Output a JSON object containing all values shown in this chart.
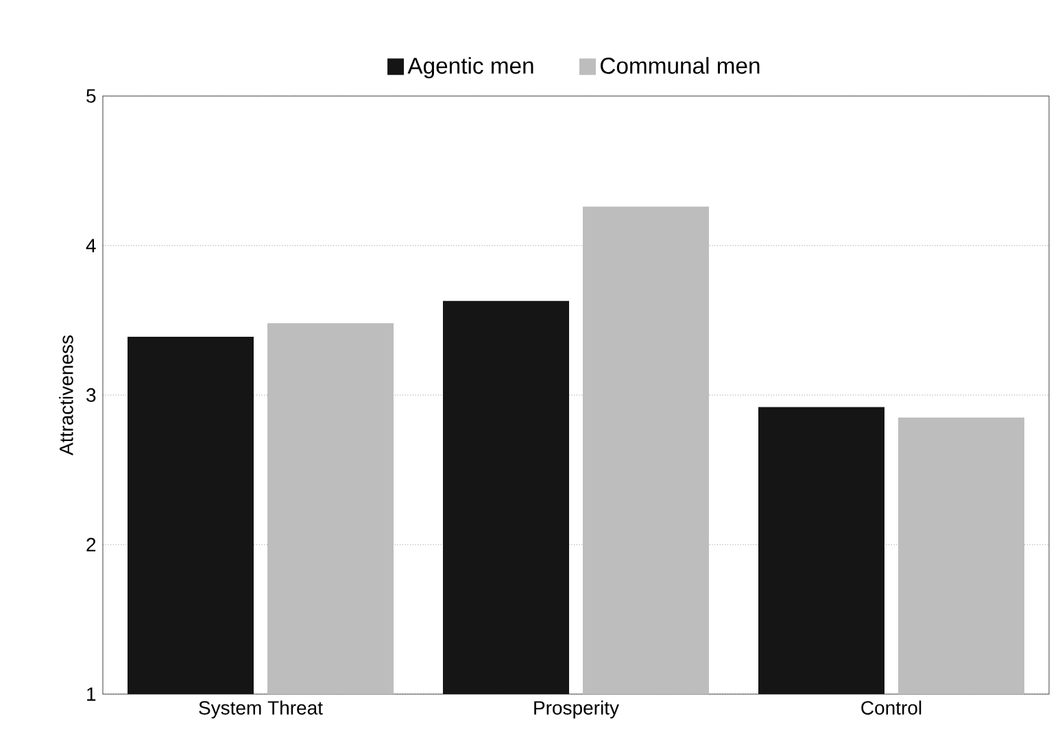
{
  "chart_data": {
    "type": "bar",
    "ylabel": "Attractiveness",
    "categories": [
      "System Threat",
      "Prosperity",
      "Control"
    ],
    "series": [
      {
        "name": "Agentic men",
        "color": "#151515",
        "values": [
          3.39,
          3.63,
          2.92
        ]
      },
      {
        "name": "Communal men",
        "color": "#bdbdbd",
        "values": [
          3.48,
          4.26,
          2.85
        ]
      }
    ],
    "ylim": [
      1,
      5
    ],
    "yticks": [
      1,
      2,
      3,
      4,
      5
    ],
    "grid": "y",
    "legend": "top"
  }
}
